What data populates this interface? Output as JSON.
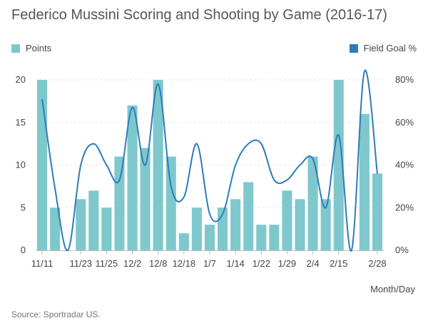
{
  "chart_data": {
    "type": "bar",
    "title": "Federico Mussini Scoring and Shooting by Game (2016-17)",
    "xlabel": "Month/Day",
    "ylabel": "",
    "ylim": [
      0,
      20
    ],
    "y2lim": [
      0,
      0.8
    ],
    "yticks": [
      "0",
      "5",
      "10",
      "15",
      "20"
    ],
    "y2ticks": [
      "0%",
      "20%",
      "40%",
      "60%",
      "80%"
    ],
    "x_tick_labels": [
      "11/11",
      "11/23",
      "11/25",
      "12/2",
      "12/8",
      "12/18",
      "1/7",
      "1/14",
      "1/22",
      "1/29",
      "2/4",
      "2/15",
      "2/28"
    ],
    "x_tick_positions": [
      0,
      3,
      5,
      7,
      9,
      11,
      13,
      15,
      17,
      19,
      21,
      23,
      26
    ],
    "grid": true,
    "legend_position": "top",
    "series": [
      {
        "name": "Points",
        "type": "bar",
        "color": "#7ec8cd",
        "values": [
          20,
          5,
          0,
          6,
          7,
          5,
          11,
          17,
          12,
          20,
          11,
          2,
          5,
          3,
          5,
          6,
          8,
          3,
          3,
          7,
          6,
          11,
          6,
          20,
          0,
          16,
          9
        ]
      },
      {
        "name": "Field Goal %",
        "type": "line",
        "axis": "right",
        "color": "#2e7cb8",
        "values": [
          0.71,
          0.29,
          0.0,
          0.4,
          0.5,
          0.4,
          0.33,
          0.67,
          0.4,
          0.78,
          0.3,
          0.25,
          0.5,
          0.17,
          0.17,
          0.4,
          0.5,
          0.5,
          0.33,
          0.33,
          0.4,
          0.43,
          0.2,
          0.54,
          0.0,
          0.84,
          0.36
        ]
      }
    ]
  },
  "footer": {
    "source": "Source: Sportradar US."
  }
}
